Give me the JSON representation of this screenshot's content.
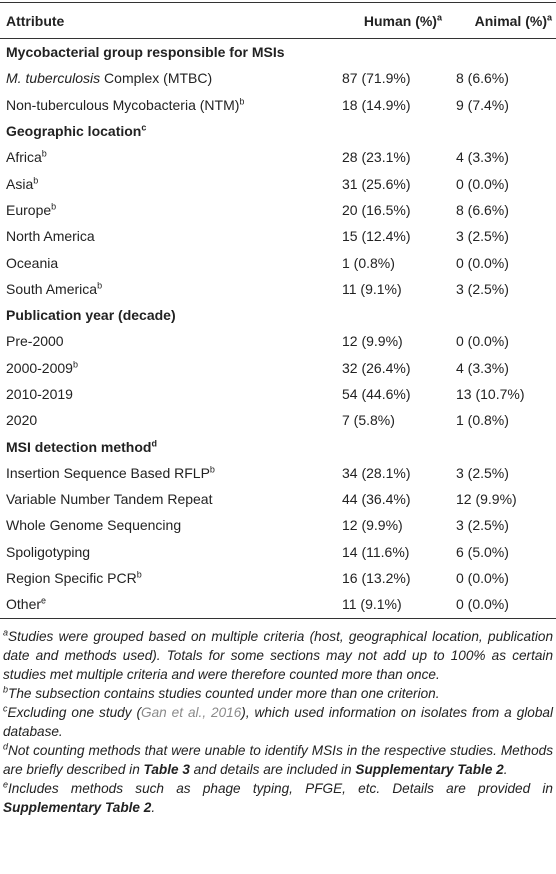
{
  "table": {
    "header": [
      {
        "text": "Attribute"
      },
      {
        "text": "Human (%)",
        "sup": "a"
      },
      {
        "text": "Animal (%)",
        "sup": "a"
      }
    ],
    "rows": [
      {
        "section": "Mycobacterial group responsible for MSIs"
      },
      {
        "label_italic": "M. tuberculosis",
        "label": "Complex (MTBC)",
        "human": "87 (71.9%)",
        "animal": "8 (6.6%)"
      },
      {
        "label": "Non-tuberculous Mycobacteria (NTM)",
        "sup": "b",
        "human": "18 (14.9%)",
        "animal": "9 (7.4%)"
      },
      {
        "section": "Geographic location",
        "sup": "c"
      },
      {
        "label": "Africa",
        "sup": "b",
        "human": "28 (23.1%)",
        "animal": "4 (3.3%)"
      },
      {
        "label": "Asia",
        "sup": "b",
        "human": "31 (25.6%)",
        "animal": "0 (0.0%)"
      },
      {
        "label": "Europe",
        "sup": "b",
        "human": "20 (16.5%)",
        "animal": "8 (6.6%)"
      },
      {
        "label": "North America",
        "human": "15 (12.4%)",
        "animal": "3 (2.5%)"
      },
      {
        "label": "Oceania",
        "human": "1 (0.8%)",
        "animal": "0 (0.0%)"
      },
      {
        "label": "South America",
        "sup": "b",
        "human": "11 (9.1%)",
        "animal": "3 (2.5%)"
      },
      {
        "section": "Publication year (decade)"
      },
      {
        "label": "Pre-2000",
        "human": "12 (9.9%)",
        "animal": "0 (0.0%)"
      },
      {
        "label": "2000-2009",
        "sup": "b",
        "human": "32 (26.4%)",
        "animal": "4 (3.3%)"
      },
      {
        "label": "2010-2019",
        "human": "54 (44.6%)",
        "animal": "13 (10.7%)"
      },
      {
        "label": "2020",
        "human": "7 (5.8%)",
        "animal": "1 (0.8%)"
      },
      {
        "section": "MSI detection method",
        "sup": "d"
      },
      {
        "label": "Insertion Sequence Based RFLP",
        "sup": "b",
        "human": "34 (28.1%)",
        "animal": "3 (2.5%)"
      },
      {
        "label": "Variable Number Tandem Repeat",
        "human": "44 (36.4%)",
        "animal": "12 (9.9%)"
      },
      {
        "label": "Whole Genome Sequencing",
        "human": "12 (9.9%)",
        "animal": "3 (2.5%)"
      },
      {
        "label": "Spoligotyping",
        "human": "14 (11.6%)",
        "animal": "6 (5.0%)"
      },
      {
        "label": "Region Specific PCR",
        "sup": "b",
        "human": "16 (13.2%)",
        "animal": "0 (0.0%)"
      },
      {
        "label": "Other",
        "sup": "e",
        "human": "11 (9.1%)",
        "animal": "0 (0.0%)"
      }
    ]
  },
  "footnotes": [
    [
      {
        "text": "a",
        "style": "sup"
      },
      {
        "text": "Studies were grouped based on multiple criteria (host, geographical location, publication date and methods used). Totals for some sections may not add up to 100% as certain studies met multiple criteria and were therefore counted more than once."
      }
    ],
    [
      {
        "text": "b",
        "style": "sup"
      },
      {
        "text": "The subsection contains studies counted under more than one criterion."
      }
    ],
    [
      {
        "text": "c",
        "style": "sup"
      },
      {
        "text": "Excluding one study ("
      },
      {
        "text": "Gan et al., 2016",
        "style": "link"
      },
      {
        "text": "), which used information on isolates from a global database."
      }
    ],
    [
      {
        "text": "d",
        "style": "sup"
      },
      {
        "text": "Not counting methods that were unable to identify MSIs in the respective studies. Methods are briefly described in "
      },
      {
        "text": "Table 3",
        "style": "bold"
      },
      {
        "text": " and details are included in "
      },
      {
        "text": "Supplementary Table 2",
        "style": "bold"
      },
      {
        "text": "."
      }
    ],
    [
      {
        "text": "e",
        "style": "sup"
      },
      {
        "text": "Includes methods such as phage typing, PFGE, etc. Details are provided in "
      },
      {
        "text": "Supplementary Table 2",
        "style": "bold"
      },
      {
        "text": "."
      }
    ]
  ]
}
